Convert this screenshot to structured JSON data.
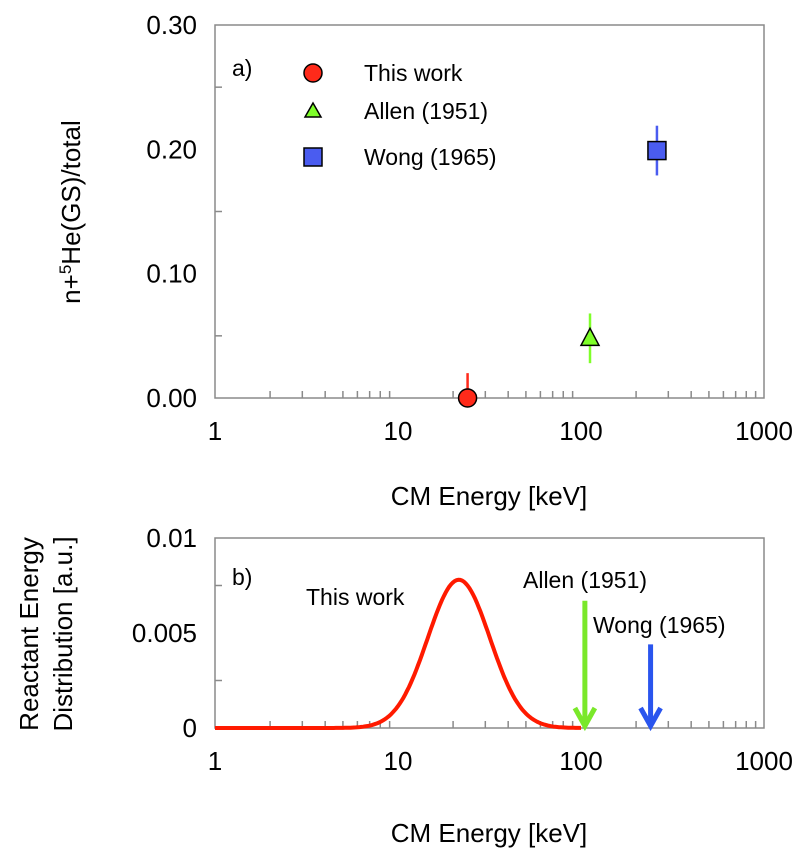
{
  "chart_data": [
    {
      "type": "scatter",
      "panel_label": "a)",
      "xlabel": "CM Energy [keV]",
      "ylabel": {
        "pre": "n+",
        "sup": "5",
        "post": "He(GS)/total"
      },
      "xscale": "log",
      "xlim": [
        1,
        1000
      ],
      "ylim": [
        0,
        0.3
      ],
      "xticks": [
        "1",
        "10",
        "100",
        "1000"
      ],
      "yticks": [
        "0.00",
        "0.10",
        "0.20",
        "0.30"
      ],
      "legend_position": "top-left",
      "series": [
        {
          "name": "This work",
          "marker": "circle",
          "color": "#ff2a1a",
          "points": [
            {
              "x": 24,
              "y": 0.0,
              "err": 0.02
            }
          ]
        },
        {
          "name": "Allen (1951)",
          "marker": "triangle",
          "color": "#7fff2a",
          "points": [
            {
              "x": 112,
              "y": 0.048,
              "err": 0.02
            }
          ]
        },
        {
          "name": "Wong (1965)",
          "marker": "square",
          "color": "#4a5cf0",
          "points": [
            {
              "x": 260,
              "y": 0.199,
              "err": 0.02
            }
          ]
        }
      ]
    },
    {
      "type": "line",
      "panel_label": "b)",
      "xlabel": "CM Energy [keV]",
      "ylabel": [
        "Reactant Energy",
        "Distribution [a.u.]"
      ],
      "xscale": "log",
      "xlim": [
        1,
        1000
      ],
      "ylim": [
        0,
        0.01
      ],
      "xticks": [
        "1",
        "10",
        "100",
        "1000"
      ],
      "yticks": [
        "0",
        "0.005",
        "0.01"
      ],
      "series": [
        {
          "name": "This work",
          "color": "#ff1a00",
          "peak_x": 21.5,
          "peak_y": 0.0078,
          "log_sigma": 0.17,
          "x_range": [
            1,
            100
          ]
        }
      ],
      "annotations": [
        {
          "text": "This work",
          "type": "label"
        },
        {
          "text": "Allen (1951)",
          "type": "arrow",
          "x": 105,
          "y_from": 0.0067,
          "y_to": 0,
          "color": "#7ae82a"
        },
        {
          "text": "Wong (1965)",
          "type": "arrow",
          "x": 240,
          "y_from": 0.0044,
          "y_to": 0,
          "color": "#2a55ee"
        }
      ]
    }
  ]
}
